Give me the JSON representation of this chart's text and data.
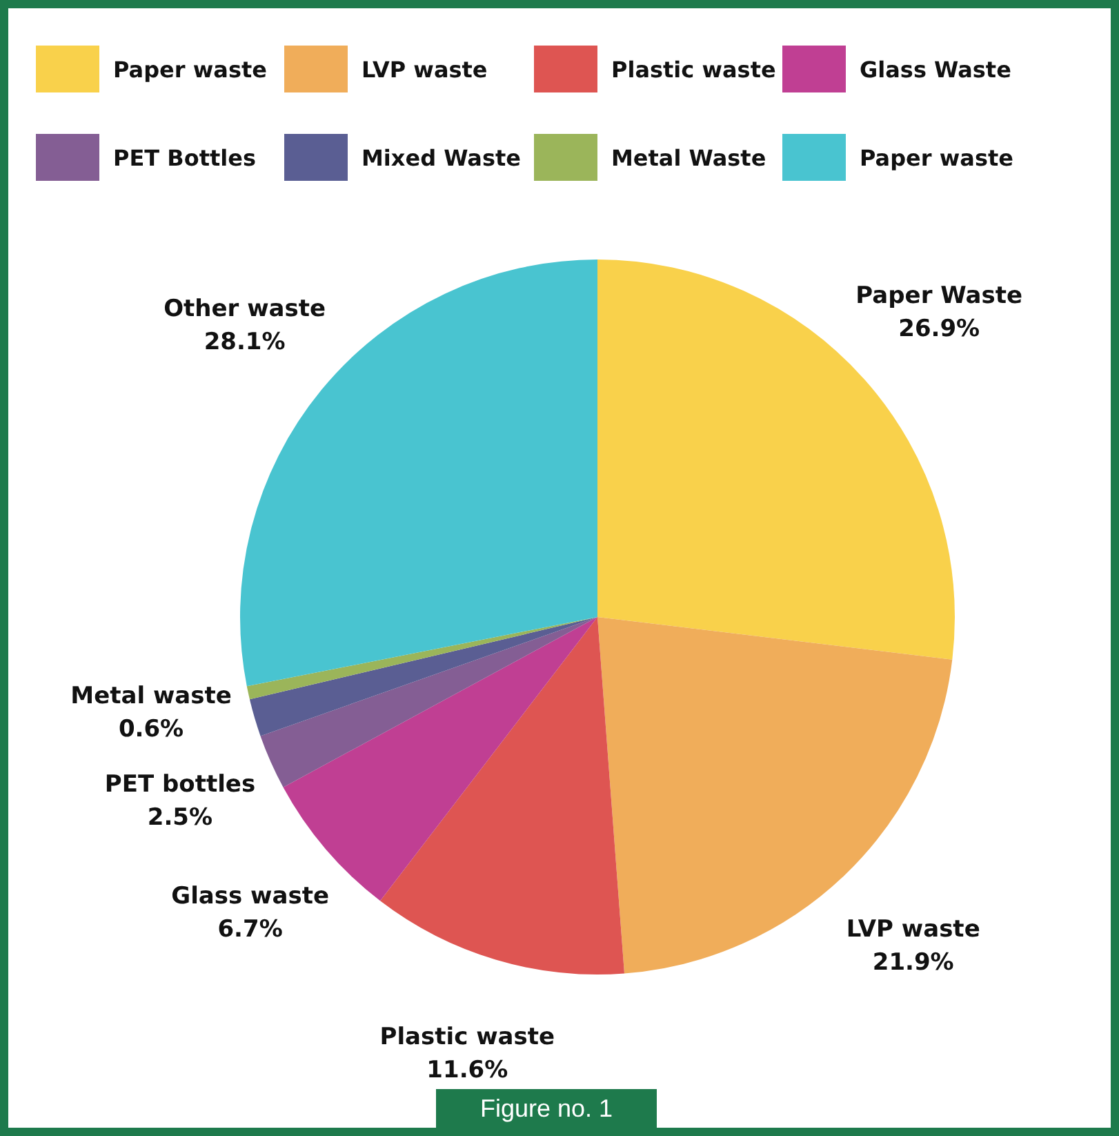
{
  "chart_data": {
    "type": "pie",
    "categories": [
      "Paper waste",
      "LVP waste",
      "Plastic waste",
      "Glass Waste",
      "PET Bottles",
      "Mixed Waste",
      "Metal Waste",
      "Paper waste"
    ],
    "values": [
      26.9,
      21.9,
      11.6,
      6.7,
      2.5,
      1.7,
      0.6,
      28.1
    ],
    "colors": [
      "#f9d14b",
      "#f0ad5a",
      "#de5552",
      "#c03f93",
      "#845e94",
      "#5a5e93",
      "#9bb55a",
      "#49c4d0"
    ],
    "value_labels": [
      "Paper Waste\n26.9%",
      "LVP waste\n21.9%",
      "Plastic waste\n11.6%",
      "Glass waste\n6.7%",
      "PET bottles\n2.5%",
      null,
      "Metal waste\n0.6%",
      "Other waste\n28.1%"
    ],
    "legend": "top",
    "annotations": [
      "Figure no. 1"
    ]
  }
}
